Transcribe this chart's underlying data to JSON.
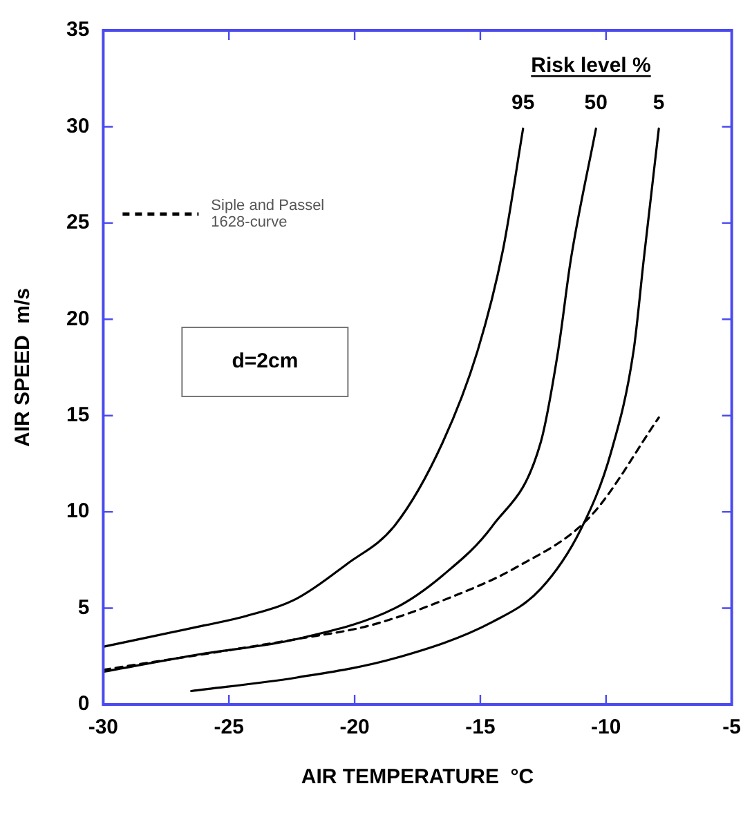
{
  "chart_data": {
    "type": "line",
    "xlabel": "AIR TEMPERATURE  °C",
    "ylabel": "AIR SPEED  m/s",
    "xlim": [
      -30,
      -5
    ],
    "ylim": [
      0,
      35
    ],
    "xticks": [
      -30,
      -25,
      -20,
      -15,
      -10,
      -5
    ],
    "yticks": [
      0,
      5,
      10,
      15,
      20,
      25,
      30,
      35
    ],
    "legend": "top left",
    "legend_title": "Risk level %",
    "marker": "none",
    "grid": false,
    "annotations": [
      "d=2cm"
    ],
    "series": [
      {
        "name": "95",
        "color": "#000000",
        "line_style": "solid",
        "x": [
          -30,
          -26,
          -24.3,
          -22.3,
          -20.3,
          -18.4,
          -16.5,
          -15.1,
          -14.1,
          -13.3
        ],
        "values": [
          3.0,
          4.1,
          4.6,
          5.5,
          7.3,
          9.3,
          13.6,
          18.4,
          23.6,
          29.9
        ]
      },
      {
        "name": "50",
        "color": "#000000",
        "line_style": "solid",
        "x": [
          -30,
          -26.2,
          -22.3,
          -18.4,
          -16.5,
          -14.5,
          -12.6,
          -11.9,
          -11.4,
          -10.4
        ],
        "values": [
          1.7,
          2.6,
          3.4,
          5.0,
          6.7,
          9.3,
          13.6,
          18.4,
          23.1,
          29.9
        ]
      },
      {
        "name": "5",
        "color": "#000000",
        "line_style": "solid",
        "x": [
          -26.5,
          -22.3,
          -18.4,
          -14.5,
          -12.6,
          -11.0,
          -9.8,
          -8.9,
          -8.5,
          -7.9
        ],
        "values": [
          0.7,
          1.4,
          2.4,
          4.3,
          6.0,
          9.1,
          13.1,
          18.4,
          23.1,
          29.9
        ]
      },
      {
        "name": "Siple and Passel 1628-curve",
        "color": "#000000",
        "line_style": "dashed",
        "x": [
          -30,
          -22.3,
          -19.4,
          -16.5,
          -13.6,
          -10.6,
          -7.9
        ],
        "values": [
          1.8,
          3.4,
          4.1,
          5.4,
          7.1,
          9.8,
          14.9
        ]
      }
    ]
  }
}
